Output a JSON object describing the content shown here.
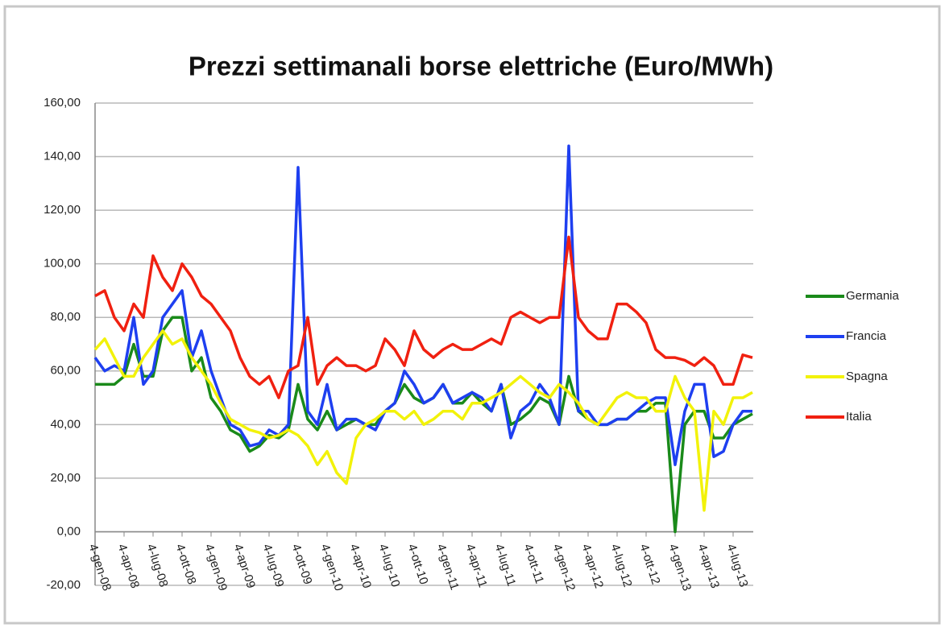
{
  "chart_data": {
    "type": "line",
    "title": "Prezzi settimanali borse elettriche (Euro/MWh)",
    "categories": [
      "4-gen-08",
      null,
      null,
      "4-apr-08",
      null,
      null,
      "4-lug-08",
      null,
      null,
      "4-ott-08",
      null,
      null,
      "4-gen-09",
      null,
      null,
      "4-apr-09",
      null,
      null,
      "4-lug-09",
      null,
      null,
      "4-ott-09",
      null,
      null,
      "4-gen-10",
      null,
      null,
      "4-apr-10",
      null,
      null,
      "4-lug-10",
      null,
      null,
      "4-ott-10",
      null,
      null,
      "4-gen-11",
      null,
      null,
      "4-apr-11",
      null,
      null,
      "4-lug-11",
      null,
      null,
      "4-ott-11",
      null,
      null,
      "4-gen-12",
      null,
      null,
      "4-apr-12",
      null,
      null,
      "4-lug-12",
      null,
      null,
      "4-ott-12",
      null,
      null,
      "4-gen-13",
      null,
      null,
      "4-apr-13",
      null,
      null,
      "4-lug-13",
      null,
      null
    ],
    "series": [
      {
        "name": "Germania",
        "color": "#1a8a1a",
        "values": [
          55,
          55,
          55,
          58,
          70,
          58,
          58,
          75,
          80,
          80,
          60,
          65,
          50,
          45,
          38,
          36,
          30,
          32,
          36,
          35,
          38,
          55,
          42,
          38,
          45,
          38,
          40,
          42,
          40,
          40,
          45,
          48,
          55,
          50,
          48,
          50,
          55,
          48,
          48,
          52,
          48,
          45,
          55,
          40,
          42,
          45,
          50,
          48,
          40,
          58,
          45,
          42,
          40,
          40,
          42,
          42,
          45,
          45,
          48,
          48,
          0,
          40,
          45,
          45,
          35,
          35,
          40,
          42,
          44
        ]
      },
      {
        "name": "Francia",
        "color": "#1e3ff0",
        "values": [
          65,
          60,
          62,
          60,
          80,
          55,
          60,
          80,
          85,
          90,
          65,
          75,
          60,
          50,
          40,
          38,
          32,
          33,
          38,
          36,
          40,
          136,
          45,
          40,
          55,
          38,
          42,
          42,
          40,
          38,
          45,
          48,
          60,
          55,
          48,
          50,
          55,
          48,
          50,
          52,
          50,
          45,
          55,
          35,
          45,
          48,
          55,
          50,
          40,
          144,
          45,
          45,
          40,
          40,
          42,
          42,
          45,
          48,
          50,
          50,
          25,
          45,
          55,
          55,
          28,
          30,
          40,
          45,
          45
        ]
      },
      {
        "name": "Spagna",
        "color": "#f2f20a",
        "values": [
          68,
          72,
          65,
          58,
          58,
          65,
          70,
          75,
          70,
          72,
          65,
          60,
          55,
          48,
          42,
          40,
          38,
          37,
          35,
          36,
          38,
          36,
          32,
          25,
          30,
          22,
          18,
          35,
          40,
          42,
          45,
          45,
          42,
          45,
          40,
          42,
          45,
          45,
          42,
          48,
          48,
          50,
          52,
          55,
          58,
          55,
          52,
          50,
          55,
          52,
          48,
          42,
          40,
          45,
          50,
          52,
          50,
          50,
          45,
          45,
          58,
          50,
          45,
          8,
          45,
          40,
          50,
          50,
          52
        ]
      },
      {
        "name": "Italia",
        "color": "#f02010",
        "values": [
          88,
          90,
          80,
          75,
          85,
          80,
          103,
          95,
          90,
          100,
          95,
          88,
          85,
          80,
          75,
          65,
          58,
          55,
          58,
          50,
          60,
          62,
          80,
          55,
          62,
          65,
          62,
          62,
          60,
          62,
          72,
          68,
          62,
          75,
          68,
          65,
          68,
          70,
          68,
          68,
          70,
          72,
          70,
          80,
          82,
          80,
          78,
          80,
          80,
          110,
          80,
          75,
          72,
          72,
          85,
          85,
          82,
          78,
          68,
          65,
          65,
          64,
          62,
          65,
          62,
          55,
          55,
          66,
          65
        ]
      }
    ],
    "ylim": [
      -20,
      160
    ],
    "yticks": [
      {
        "value": -20,
        "label": "-20,00"
      },
      {
        "value": 0,
        "label": "0,00"
      },
      {
        "value": 20,
        "label": "20,00"
      },
      {
        "value": 40,
        "label": "40,00"
      },
      {
        "value": 60,
        "label": "60,00"
      },
      {
        "value": 80,
        "label": "80,00"
      },
      {
        "value": 100,
        "label": "100,00"
      },
      {
        "value": 120,
        "label": "120,00"
      },
      {
        "value": 140,
        "label": "140,00"
      },
      {
        "value": 160,
        "label": "160,00"
      }
    ],
    "grid": true,
    "legend": "right"
  }
}
